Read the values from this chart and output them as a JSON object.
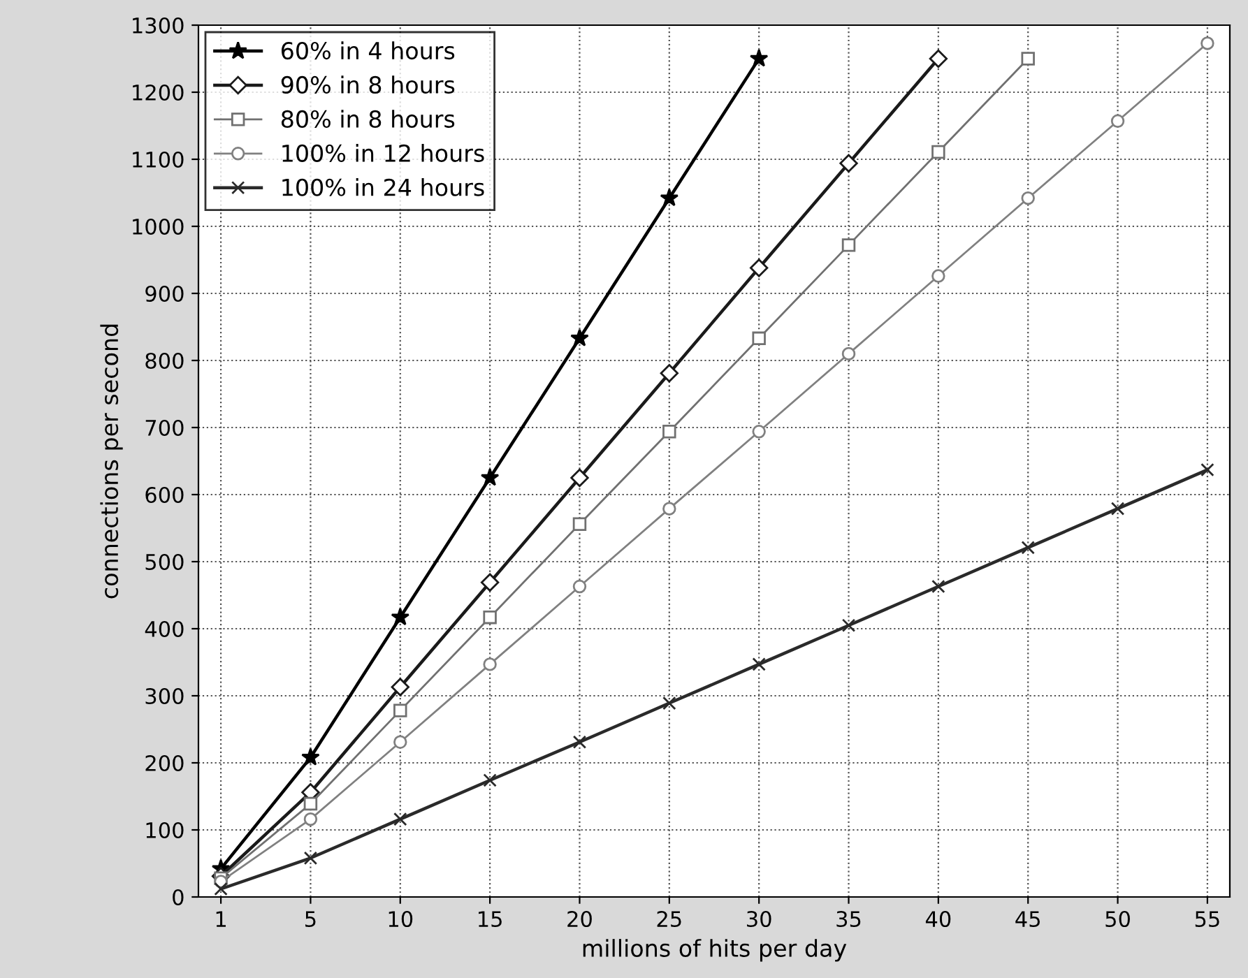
{
  "chart_data": {
    "type": "line",
    "xlabel": "millions of hits per day",
    "ylabel": "connections per second",
    "categories": [
      "1",
      "5",
      "10",
      "15",
      "20",
      "25",
      "30",
      "35",
      "40",
      "45",
      "50",
      "55"
    ],
    "series": [
      {
        "name": "60% in 4 hours",
        "color": "#000000",
        "marker": "star",
        "values": [
          42,
          208,
          417,
          625,
          833,
          1042,
          1250,
          null,
          null,
          null,
          null,
          null
        ]
      },
      {
        "name": "90% in 8 hours",
        "color": "#1a1a1a",
        "marker": "diamond",
        "values": [
          31,
          156,
          313,
          469,
          625,
          781,
          938,
          1094,
          1250,
          null,
          null,
          null
        ]
      },
      {
        "name": "80% in 8 hours",
        "color": "#707070",
        "marker": "square",
        "values": [
          28,
          139,
          278,
          417,
          556,
          694,
          833,
          972,
          1111,
          1250,
          null,
          null
        ]
      },
      {
        "name": "100% in 12 hours",
        "color": "#808080",
        "marker": "circle",
        "values": [
          23,
          116,
          231,
          347,
          463,
          579,
          694,
          810,
          926,
          1042,
          1157,
          1273
        ]
      },
      {
        "name": "100% in 24 hours",
        "color": "#2a2a2a",
        "marker": "cross",
        "values": [
          12,
          58,
          116,
          174,
          231,
          289,
          347,
          405,
          463,
          521,
          579,
          637
        ]
      }
    ],
    "ylim": [
      0,
      1300
    ],
    "yticks": [
      0,
      100,
      200,
      300,
      400,
      500,
      600,
      700,
      800,
      900,
      1000,
      1100,
      1200,
      1300
    ],
    "grid": true,
    "legend": "top left",
    "line_style": "solid"
  }
}
